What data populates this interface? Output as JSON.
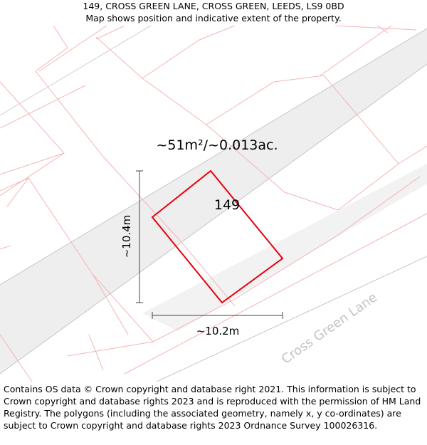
{
  "header": {
    "address": "149, CROSS GREEN LANE, CROSS GREEN, LEEDS, LS9 0BD",
    "subtitle": "Map shows position and indicative extent of the property."
  },
  "map": {
    "area_label": "~51m²/~0.013ac.",
    "plot_number": "149",
    "height_label": "~10.4m",
    "width_label": "~10.2m",
    "street_label": "Cross Green Lane",
    "colors": {
      "road_band": "#eeeeee",
      "road_edge": "#c6c6c6",
      "parcel_line": "#f4b4b4",
      "property_outline": "#e8000b",
      "street_text": "#c4c4c4",
      "dimension_line": "#444444"
    }
  },
  "footer": {
    "attribution": "Contains OS data © Crown copyright and database right 2021. This information is subject to Crown copyright and database rights 2023 and is reproduced with the permission of HM Land Registry. The polygons (including the associated geometry, namely x, y co-ordinates) are subject to Crown copyright and database rights 2023 Ordnance Survey 100026316."
  }
}
